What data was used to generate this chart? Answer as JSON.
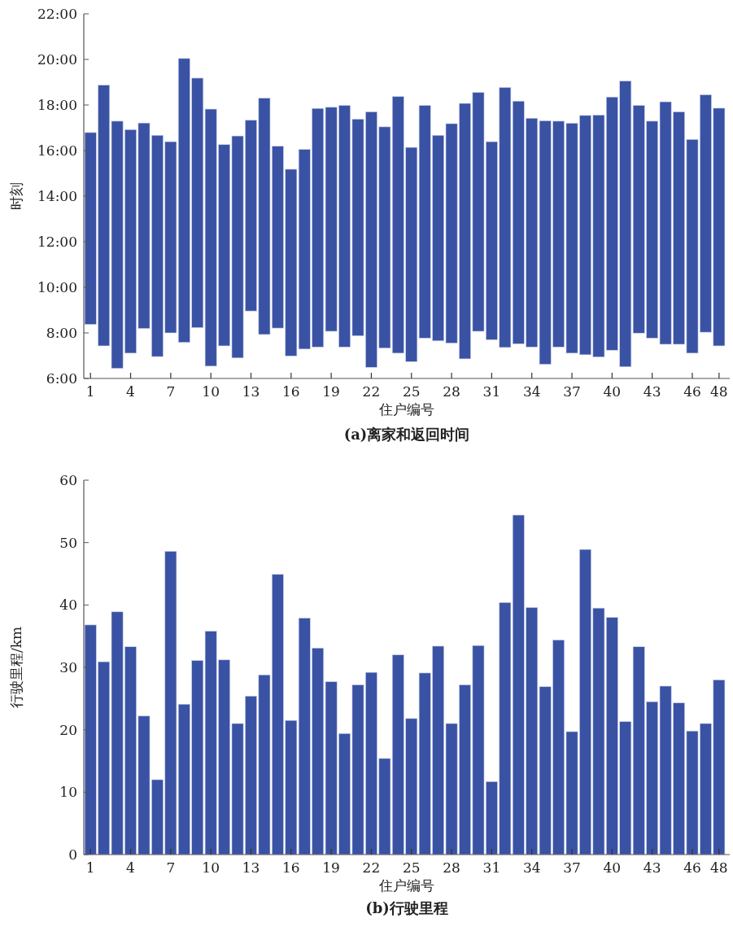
{
  "chart_data": [
    {
      "type": "bar",
      "xlabel": "住户编号",
      "ylabel": "时刻",
      "color": "#3a52a3",
      "categories": [
        "1",
        null,
        null,
        "4",
        null,
        null,
        "7",
        null,
        null,
        "10",
        null,
        null,
        "13",
        null,
        null,
        "16",
        null,
        null,
        "19",
        null,
        null,
        "22",
        null,
        null,
        "25",
        null,
        null,
        "28",
        null,
        null,
        "31",
        null,
        null,
        "34",
        null,
        null,
        "37",
        null,
        null,
        "40",
        null,
        null,
        "43",
        null,
        null,
        "46",
        null,
        "48"
      ],
      "base": [
        8.37,
        7.43,
        6.44,
        7.11,
        8.19,
        6.96,
        8.0,
        7.58,
        8.23,
        6.54,
        7.43,
        6.9,
        8.96,
        7.93,
        8.21,
        6.99,
        7.29,
        7.38,
        8.07,
        7.38,
        7.87,
        6.49,
        7.33,
        7.11,
        6.74,
        7.77,
        7.65,
        7.55,
        6.86,
        8.07,
        7.7,
        7.36,
        7.52,
        7.38,
        6.62,
        7.38,
        7.11,
        7.04,
        6.94,
        7.24,
        6.51,
        7.99,
        7.77,
        7.5,
        7.5,
        7.11,
        8.03,
        7.43
      ],
      "values": [
        8.42,
        11.44,
        10.85,
        9.81,
        9.02,
        9.71,
        8.39,
        12.46,
        10.95,
        11.28,
        8.83,
        9.74,
        8.37,
        10.37,
        7.98,
        8.19,
        8.76,
        10.47,
        9.83,
        10.6,
        9.51,
        11.21,
        9.71,
        11.26,
        9.4,
        10.21,
        9.02,
        9.63,
        11.21,
        10.48,
        8.69,
        11.41,
        10.65,
        10.04,
        10.69,
        9.91,
        10.09,
        10.5,
        10.62,
        11.11,
        12.54,
        9.99,
        9.52,
        10.64,
        10.2,
        9.38,
        10.42,
        10.43
      ],
      "ylim": [
        6,
        22
      ],
      "yticks": [
        {
          "value": 6,
          "label": "6:00"
        },
        {
          "value": 8,
          "label": "8:00"
        },
        {
          "value": 10,
          "label": "10:00"
        },
        {
          "value": 12,
          "label": "12:00"
        },
        {
          "value": 14,
          "label": "14:00"
        },
        {
          "value": 16,
          "label": "16:00"
        },
        {
          "value": 18,
          "label": "18:00"
        },
        {
          "value": 20,
          "label": "20:00"
        },
        {
          "value": 22,
          "label": "22:00"
        }
      ],
      "annotations": [
        "(a)离家和返回时间"
      ]
    },
    {
      "type": "bar",
      "xlabel": "住户编号",
      "ylabel": "行驶里程/km",
      "color": "#3a52a3",
      "categories": [
        "1",
        null,
        null,
        "4",
        null,
        null,
        "7",
        null,
        null,
        "10",
        null,
        null,
        "13",
        null,
        null,
        "16",
        null,
        null,
        "19",
        null,
        null,
        "22",
        null,
        null,
        "25",
        null,
        null,
        "28",
        null,
        null,
        "31",
        null,
        null,
        "34",
        null,
        null,
        "37",
        null,
        null,
        "40",
        null,
        null,
        "43",
        null,
        null,
        "46",
        null,
        "48"
      ],
      "values": [
        36.8,
        30.9,
        38.9,
        33.3,
        22.2,
        12.0,
        48.6,
        24.1,
        31.1,
        35.8,
        31.2,
        21.0,
        25.4,
        28.8,
        44.9,
        21.5,
        37.9,
        33.1,
        27.7,
        19.4,
        27.2,
        29.2,
        15.4,
        32.0,
        21.8,
        29.1,
        33.4,
        21.0,
        27.2,
        33.5,
        11.7,
        40.4,
        54.4,
        39.6,
        26.9,
        34.4,
        19.7,
        48.9,
        39.5,
        38.0,
        21.3,
        33.3,
        24.5,
        27.0,
        24.3,
        19.8,
        21.0,
        28.0
      ],
      "ylim": [
        0,
        60
      ],
      "yticks": [
        0,
        10,
        20,
        30,
        40,
        50,
        60
      ],
      "annotations": [
        "(b)行驶里程"
      ]
    }
  ]
}
